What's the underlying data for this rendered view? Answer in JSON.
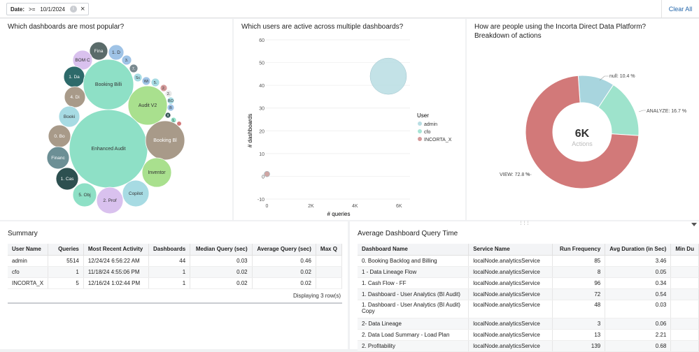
{
  "filter": {
    "label": "Date:",
    "operator": ">=",
    "value": "10/1/2024",
    "info": "i",
    "close": "×"
  },
  "clear_all": "Clear All",
  "panel1": {
    "title": "Which dashboards are most popular?",
    "bubbles": [
      "Fina",
      "1. D",
      "BOM C",
      "3.",
      "7.",
      "1. Da",
      "Booking Billi",
      "Sc",
      "Wi",
      "5.",
      "2.",
      "4. Di",
      "Audit V2",
      "2.",
      "BO",
      "B",
      "Booki",
      "X",
      "1.",
      "0. Bo",
      "Enhanced Audit",
      "Booking Bl",
      "Financ",
      "Inventor",
      "1. Cas",
      "5. Obj",
      "2. Prof",
      "Copilot"
    ]
  },
  "panel2": {
    "title": "Which users are active across multiple dashboards?",
    "y_axis_label": "# dashboards",
    "x_axis_label": "# queries",
    "legend_title": "User",
    "legend": [
      {
        "name": "admin",
        "color": "#b8dde3"
      },
      {
        "name": "cfo",
        "color": "#a6e4d5"
      },
      {
        "name": "INCORTA_X",
        "color": "#d49a9a"
      }
    ]
  },
  "panel3": {
    "title": "How are people using the Incorta Direct Data Platform?",
    "subtitle": "Breakdown of actions",
    "center_value": "6K",
    "center_label": "Actions",
    "labels": [
      "null: 10.4 %",
      "ANALYZE: 16.7 %",
      "VIEW: 72.8 %"
    ]
  },
  "chart_data": [
    {
      "type": "scatter",
      "title": "Which users are active across multiple dashboards?",
      "xlabel": "# queries",
      "ylabel": "# dashboards",
      "xlim": [
        -300,
        6500
      ],
      "ylim": [
        -10,
        60
      ],
      "xticks": [
        "0",
        "2K",
        "4K",
        "6K"
      ],
      "yticks": [
        "60",
        "50",
        "40",
        "30",
        "20",
        "10",
        "0",
        "-10"
      ],
      "series": [
        {
          "name": "admin",
          "x": 5514,
          "y": 44,
          "color": "#b8dde3"
        },
        {
          "name": "cfo",
          "x": 1,
          "y": 1,
          "color": "#a6e4d5"
        },
        {
          "name": "INCORTA_X",
          "x": 5,
          "y": 1,
          "color": "#d49a9a"
        }
      ]
    },
    {
      "type": "pie",
      "title": "Breakdown of actions",
      "slices": [
        {
          "label": "null",
          "value": 10.4,
          "color": "#a8d5de"
        },
        {
          "label": "ANALYZE",
          "value": 16.7,
          "color": "#9ee3cc"
        },
        {
          "label": "VIEW",
          "value": 72.8,
          "color": "#d27979"
        }
      ]
    }
  ],
  "summary": {
    "title": "Summary",
    "columns": [
      "User Name",
      "Queries",
      "Most Recent Activity",
      "Dashboards",
      "Median Query (sec)",
      "Average Query (sec)",
      "Max Q"
    ],
    "rows": [
      [
        "admin",
        "5514",
        "12/24/24 6:56:22 AM",
        "44",
        "0.03",
        "0.46",
        ""
      ],
      [
        "cfo",
        "1",
        "11/18/24 4:55:06 PM",
        "1",
        "0.02",
        "0.02",
        ""
      ],
      [
        "INCORTA_X",
        "5",
        "12/16/24 1:02:44 PM",
        "1",
        "0.02",
        "0.02",
        ""
      ]
    ],
    "footer": "Displaying 3 row(s)"
  },
  "avgtime": {
    "title": "Average Dashboard Query Time",
    "columns": [
      "Dashboard Name",
      "Service Name",
      "Run Frequency",
      "Avg Duration (in Sec)",
      "Min Du"
    ],
    "rows": [
      [
        "0. Booking Backlog and Billing",
        "localNode.analyticsService",
        "85",
        "3.46",
        ""
      ],
      [
        "1 - Data Lineage Flow",
        "localNode.analyticsService",
        "8",
        "0.05",
        ""
      ],
      [
        "1. Cash Flow - FF",
        "localNode.analyticsService",
        "96",
        "0.34",
        ""
      ],
      [
        "1. Dashboard - User Analytics (BI Audit)",
        "localNode.analyticsService",
        "72",
        "0.54",
        ""
      ],
      [
        "1. Dashboard - User Analytics (BI Audit) Copy",
        "localNode.analyticsService",
        "48",
        "0.03",
        ""
      ],
      [
        "2- Data Lineage",
        "localNode.analyticsService",
        "3",
        "0.06",
        ""
      ],
      [
        "2. Data Load Summary - Load Plan",
        "localNode.analyticsService",
        "13",
        "2.21",
        ""
      ],
      [
        "2. Profitability",
        "localNode.analyticsService",
        "139",
        "0.68",
        ""
      ]
    ]
  }
}
